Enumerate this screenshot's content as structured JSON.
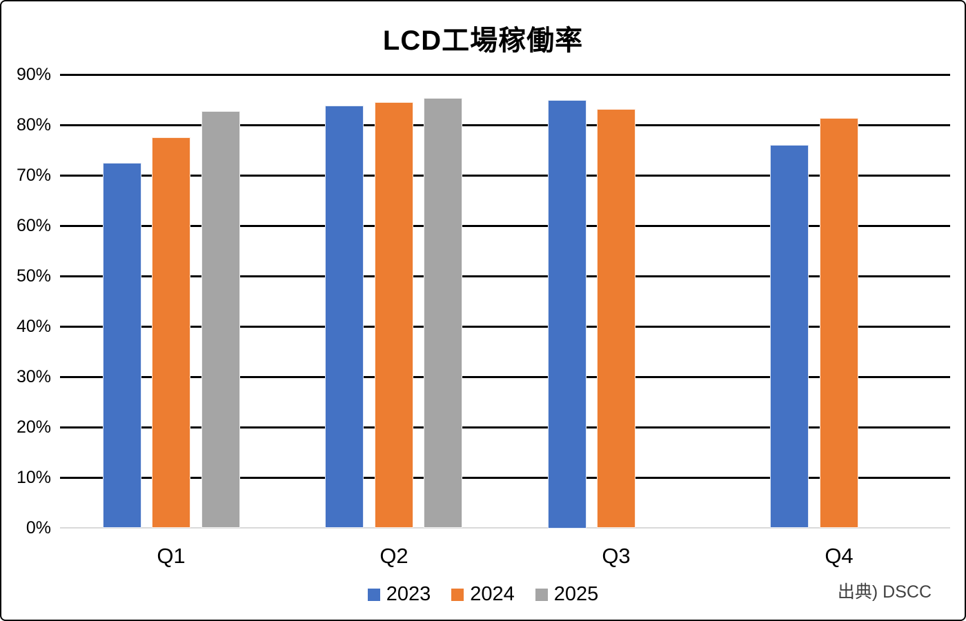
{
  "title": "LCD工場稼働率",
  "source": "出典) DSCC",
  "colors": {
    "series_2023": "#4472C4",
    "series_2024": "#ED7D31",
    "series_2025": "#A5A5A5",
    "gridline": "#000000",
    "baseline": "#D9D9D9",
    "frame_border": "#000000",
    "background": "#FFFFFF",
    "source_text": "#404040"
  },
  "chart_data": {
    "type": "bar",
    "title": "LCD工場稼働率",
    "categories": [
      "Q1",
      "Q2",
      "Q3",
      "Q4"
    ],
    "series": [
      {
        "name": "2023",
        "color": "#4472C4",
        "values": [
          72.4,
          83.8,
          85.0,
          76.0
        ]
      },
      {
        "name": "2024",
        "color": "#ED7D31",
        "values": [
          77.6,
          84.5,
          83.2,
          81.4
        ]
      },
      {
        "name": "2025",
        "color": "#A5A5A5",
        "values": [
          82.8,
          85.3,
          null,
          null
        ]
      }
    ],
    "xlabel": "",
    "ylabel": "",
    "ylim": [
      0,
      90
    ],
    "ytick_step": 10,
    "ytick_labels": [
      "0%",
      "10%",
      "20%",
      "30%",
      "40%",
      "50%",
      "60%",
      "70%",
      "80%",
      "90%"
    ],
    "grid": true,
    "legend_position": "bottom",
    "annotation": "出典) DSCC"
  }
}
